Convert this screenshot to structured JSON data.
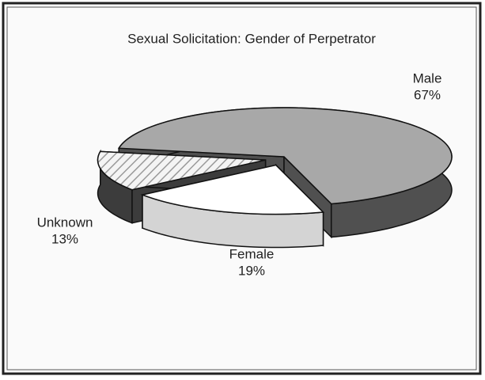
{
  "chart_data": {
    "type": "pie",
    "title": "Sexual Solicitation: Gender of Perpetrator",
    "categories": [
      "Male",
      "Female",
      "Unknown"
    ],
    "values": [
      67,
      19,
      13
    ],
    "value_labels": [
      "67%",
      "19%",
      "13%"
    ],
    "colors": [
      "#a8a8a8",
      "#ffffff",
      "#e4e4e4"
    ]
  }
}
